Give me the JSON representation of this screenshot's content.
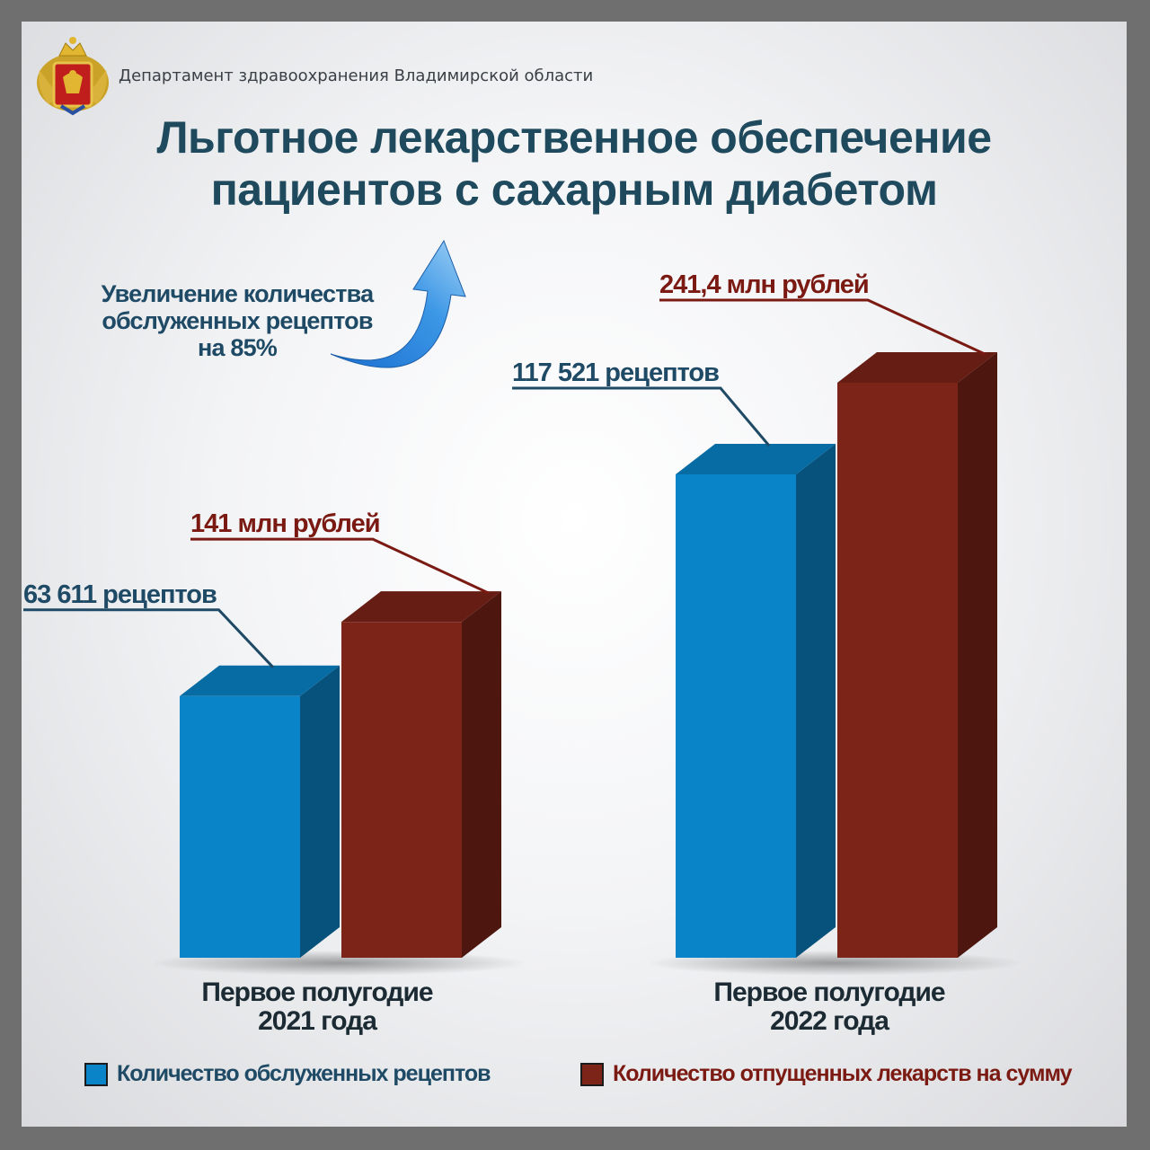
{
  "header": {
    "organization": "Департамент здравоохранения Владимирской области",
    "emblem_icon": "coat-of-arms-icon"
  },
  "title": {
    "line1": "Льготное лекарственное обеспечение",
    "line2": "пациентов с сахарным диабетом"
  },
  "annotation": {
    "line1": "Увеличение количества",
    "line2": "обслуженных рецептов",
    "line3": "на 85%",
    "icon": "curved-up-arrow-icon"
  },
  "colors": {
    "title": "#1f4a5e",
    "blue": "#0a84c8",
    "red": "#7c2418",
    "label_blue": "#1f4a66",
    "label_red": "#7a1a12"
  },
  "chart_data": {
    "type": "bar",
    "style": "3d-column",
    "categories": [
      [
        "Первое полугодие",
        "2021 года"
      ],
      [
        "Первое полугодие",
        "2022 года"
      ]
    ],
    "series": [
      {
        "name": "Количество обслуженных рецептов",
        "values": [
          63611,
          117521
        ],
        "labels": [
          "63 611 рецептов",
          "117 521 рецептов"
        ]
      },
      {
        "name": "Количество отпущенных лекарств на сумму",
        "values": [
          141,
          241.4
        ],
        "labels": [
          "141 млн рублей",
          "241,4 млн рублей"
        ]
      }
    ],
    "legend": "bottom",
    "grid": false
  }
}
